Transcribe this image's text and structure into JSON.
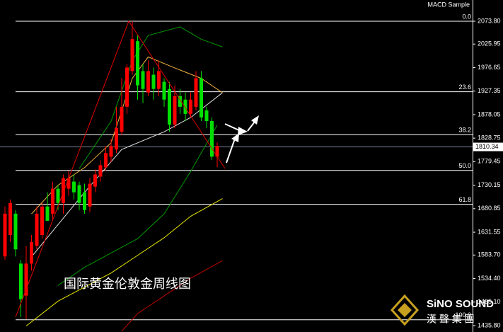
{
  "chart_data": {
    "type": "candlestick",
    "indicator_label": "MACD Sample",
    "title": "国际黄金伦敦金周线图",
    "up_color": "#ff0000",
    "down_color": "#00e000",
    "ylim": [
      1422.4,
      2118.3
    ],
    "yticks": [
      {
        "value": 2073.8,
        "label": "2073.80"
      },
      2025.95,
      1976.65,
      1927.35,
      1878.05,
      1828.75,
      1779.45,
      1730.15,
      1680.85,
      1631.55,
      {
        "value": 1583.7,
        "label": "1583.70"
      },
      {
        "value": 1534.4,
        "label": "1534.40"
      },
      {
        "value": 1485.1,
        "label": "1485.10"
      },
      {
        "value": 1435.8,
        "label": "1435.80"
      }
    ],
    "current_price": 1810.34,
    "levels": [
      {
        "label": "0.0",
        "value": 2073.8
      },
      {
        "label": "23.6",
        "value": 1926.0
      },
      {
        "label": "38.2",
        "value": 1836.0
      },
      {
        "label": "50.0",
        "value": 1761.0
      },
      {
        "label": "61.8",
        "value": 1690.0
      },
      {
        "label": "100.0",
        "value": 1448.0
      }
    ],
    "open": [
      1580.8,
      1625.6,
      1670.4,
      1565.8,
      1498.6,
      1565.8,
      1603.2,
      1625.6,
      1685.4,
      1670.4,
      1722.7,
      1692.8,
      1722.7,
      1737.6,
      1730.2,
      1715.2,
      1685.4,
      1727.2,
      1748.1,
      1767.5,
      1789.9,
      1804.9,
      1842.2,
      1894.5,
      1969.2,
      2032.0,
      1969.2,
      1924.4,
      1961.7,
      1931.9,
      1946.8,
      1931.9,
      1857.2,
      1916.9,
      1909.5,
      1879.6,
      1894.5,
      1954.3,
      1887.0,
      1864.6,
      1789.9
    ],
    "high": [
      1685.4,
      1700.3,
      1677.9,
      1573.3,
      1603.2,
      1625.6,
      1685.4,
      1692.8,
      1715.2,
      1737.6,
      1730.2,
      1752.6,
      1760.1,
      1752.6,
      1737.6,
      1733.2,
      1745.1,
      1763.0,
      1782.5,
      1812.3,
      1827.3,
      1894.5,
      1954.3,
      1984.2,
      2073.8,
      2043.9,
      1984.2,
      1991.6,
      1976.7,
      1991.6,
      1954.3,
      1946.8,
      1939.3,
      1931.9,
      1924.4,
      1924.4,
      1969.2,
      1969.2,
      1894.5,
      1872.1,
      1819.8
    ],
    "low": [
      1573.3,
      1610.7,
      1580.8,
      1453.8,
      1449.3,
      1550.9,
      1595.7,
      1618.1,
      1655.5,
      1655.5,
      1677.9,
      1670.4,
      1707.8,
      1700.3,
      1677.9,
      1670.4,
      1673.4,
      1715.2,
      1737.6,
      1760.1,
      1778.0,
      1797.4,
      1834.8,
      1879.6,
      1961.7,
      1909.5,
      1902.0,
      1916.9,
      1909.5,
      1916.9,
      1894.5,
      1842.2,
      1849.7,
      1879.6,
      1864.6,
      1872.1,
      1887.0,
      1864.6,
      1849.7,
      1782.5,
      1767.5
    ],
    "close": [
      1670.4,
      1692.8,
      1595.7,
      1491.1,
      1565.8,
      1610.7,
      1670.4,
      1685.4,
      1655.5,
      1722.7,
      1692.8,
      1745.1,
      1745.1,
      1715.2,
      1692.8,
      1677.9,
      1733.2,
      1752.6,
      1772.0,
      1797.4,
      1812.3,
      1849.7,
      1894.5,
      1976.7,
      2036.4,
      1939.3,
      1931.9,
      1969.2,
      1931.9,
      1969.2,
      1909.5,
      1857.2,
      1916.9,
      1894.5,
      1879.6,
      1909.5,
      1954.3,
      1872.1,
      1864.6,
      1789.9,
      1812.3
    ],
    "lines": [
      {
        "color": "#e8e800",
        "x": [
          4,
          10,
          20,
          25,
          30,
          35,
          41
        ],
        "values": [
          1435.0,
          1487.0,
          1546.0,
          1583.0,
          1620.0,
          1665.0,
          1702.0
        ]
      },
      {
        "color": "#c00000",
        "x": [
          22,
          25,
          30,
          35,
          41
        ],
        "values": [
          1424.0,
          1461.0,
          1498.0,
          1535.0,
          1572.0
        ]
      },
      {
        "color": "#009900",
        "x": [
          14,
          20,
          24,
          27,
          33,
          37,
          41
        ],
        "values": [
          1765.0,
          1864.0,
          1991.0,
          2044.0,
          2062.0,
          2036.0,
          2020.0
        ]
      },
      {
        "color": "#009900",
        "x": [
          10,
          15,
          25,
          30,
          35,
          40
        ],
        "values": [
          1520.0,
          1558.0,
          1618.0,
          1670.0,
          1759.0,
          1856.0
        ]
      },
      {
        "color": "#e0e0e0",
        "x": [
          5,
          15,
          22,
          30,
          35,
          41
        ],
        "values": [
          1580.0,
          1715.0,
          1805.0,
          1842.0,
          1872.0,
          1924.0
        ]
      },
      {
        "color": "#f0b040",
        "x": [
          5,
          10,
          15,
          20,
          24,
          27,
          32,
          37,
          41
        ],
        "values": [
          1670.0,
          1730.0,
          1767.0,
          1819.0,
          1954.0,
          1999.0,
          1976.0,
          1954.0,
          1924.0
        ]
      }
    ],
    "watermark": {
      "brand": "SiNO SOUND",
      "group": "漢 聲 集 團"
    }
  }
}
